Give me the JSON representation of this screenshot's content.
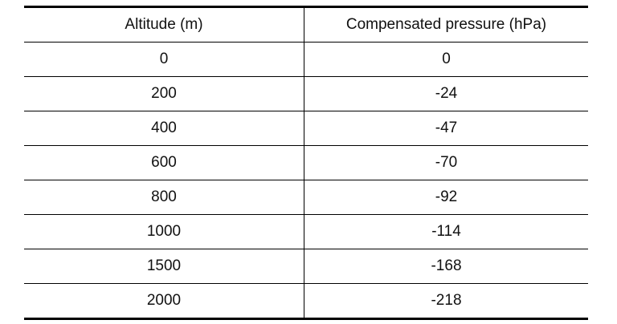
{
  "table": {
    "header": [
      "Altitude (m)",
      "Compensated pressure (hPa)"
    ],
    "rows": [
      [
        0,
        0
      ],
      [
        200,
        -24
      ],
      [
        400,
        -47
      ],
      [
        600,
        -70
      ],
      [
        800,
        -92
      ],
      [
        1000,
        -114
      ],
      [
        1500,
        -168
      ],
      [
        2000,
        -218
      ]
    ]
  }
}
